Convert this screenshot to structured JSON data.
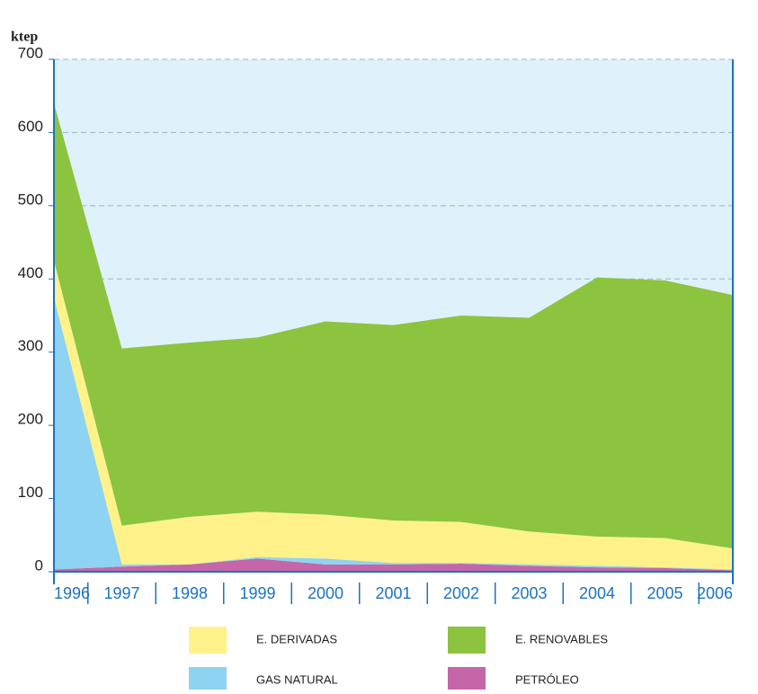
{
  "chart_data": {
    "type": "stacked_area",
    "y_label": "ktep",
    "categories": [
      "1996",
      "1997",
      "1998",
      "1999",
      "2000",
      "2001",
      "2002",
      "2003",
      "2004",
      "2005",
      "2006"
    ],
    "series": [
      {
        "name": "PETRÓLEO",
        "color": "#c466a8",
        "values": [
          3,
          7,
          10,
          18,
          10,
          10,
          11,
          8,
          6,
          5,
          2
        ]
      },
      {
        "name": "GAS NATURAL",
        "color": "#8fd3f2",
        "values": [
          372,
          3,
          0,
          2,
          8,
          2,
          1,
          2,
          2,
          1,
          1
        ]
      },
      {
        "name": "E. DERIVADAS",
        "color": "#fff28a",
        "values": [
          50,
          53,
          65,
          62,
          60,
          58,
          56,
          45,
          40,
          40,
          29
        ]
      },
      {
        "name": "E. RENOVABLES",
        "color": "#8cc43f",
        "values": [
          215,
          242,
          238,
          238,
          264,
          267,
          282,
          292,
          354,
          352,
          346
        ]
      }
    ],
    "ylim": [
      0,
      700
    ],
    "yticks": [
      0,
      100,
      200,
      300,
      400,
      500,
      600,
      700
    ],
    "grid": true
  }
}
